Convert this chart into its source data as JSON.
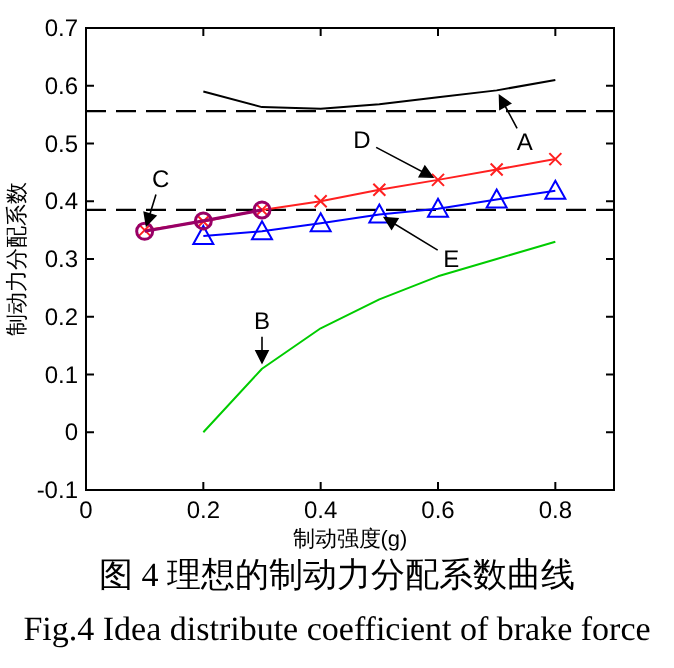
{
  "chart_data": {
    "type": "line",
    "xlabel": "制动强度(g)",
    "ylabel": "制动力分配系数",
    "xlim": [
      0,
      0.9
    ],
    "ylim": [
      -0.1,
      0.7
    ],
    "xticks": [
      0,
      0.2,
      0.4,
      0.6,
      0.8
    ],
    "yticks": [
      -0.1,
      0,
      0.1,
      0.2,
      0.3,
      0.4,
      0.5,
      0.6,
      0.7
    ],
    "grid": false,
    "series": [
      {
        "name": "A",
        "color": "#000000",
        "marker": "none",
        "x": [
          0.2,
          0.3,
          0.4,
          0.5,
          0.6,
          0.7,
          0.8
        ],
        "values": [
          0.59,
          0.563,
          0.56,
          0.568,
          0.58,
          0.592,
          0.61
        ]
      },
      {
        "name": "B",
        "color": "#00cc00",
        "marker": "none",
        "x": [
          0.2,
          0.3,
          0.4,
          0.5,
          0.6,
          0.7,
          0.8
        ],
        "values": [
          0,
          0.11,
          0.18,
          0.23,
          0.27,
          0.3,
          0.33
        ]
      },
      {
        "name": "D",
        "color": "#ff2020",
        "marker": "cross",
        "x": [
          0.1,
          0.2,
          0.3,
          0.4,
          0.5,
          0.6,
          0.7,
          0.8
        ],
        "values": [
          0.35,
          0.365,
          0.385,
          0.4,
          0.42,
          0.437,
          0.455,
          0.473
        ]
      },
      {
        "name": "E",
        "color": "#0000ff",
        "marker": "triangle",
        "x": [
          0.2,
          0.3,
          0.4,
          0.5,
          0.6,
          0.7,
          0.8
        ],
        "values": [
          0.34,
          0.348,
          0.362,
          0.377,
          0.387,
          0.403,
          0.418
        ]
      },
      {
        "name": "C",
        "color": "#990066",
        "marker": "circle",
        "x": [
          0.1,
          0.2,
          0.3
        ],
        "values": [
          0.348,
          0.366,
          0.385
        ]
      }
    ],
    "ref_lines": [
      {
        "axis": "y",
        "value": 0.556,
        "color": "#000000",
        "line_style": "dashed"
      },
      {
        "axis": "y",
        "value": 0.385,
        "color": "#000000",
        "line_style": "dashed"
      }
    ],
    "annotations": [
      "图 4 理想的制动力分配系数曲线",
      "Fig.4 Idea distribute coefficient of brake force"
    ]
  }
}
